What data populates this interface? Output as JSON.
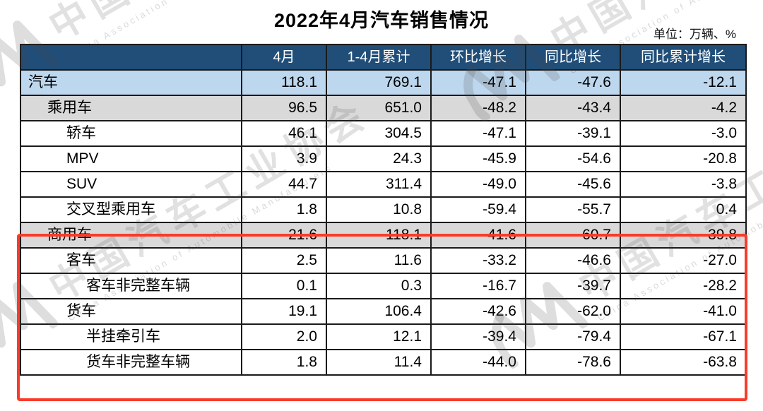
{
  "page": {
    "title": "2022年4月汽车销售情况",
    "unit_note": "单位：万辆、%"
  },
  "chart_data": {
    "type": "table",
    "title": "2022年4月汽车销售情况",
    "unit": "万辆、%",
    "columns": [
      "",
      "4月",
      "1-4月累计",
      "环比增长",
      "同比增长",
      "同比累计增长"
    ],
    "rows": [
      {
        "label": "汽车",
        "indent": 0,
        "row_style": "blue",
        "values": [
          "118.1",
          "769.1",
          "-47.1",
          "-47.6",
          "-12.1"
        ]
      },
      {
        "label": "乘用车",
        "indent": 1,
        "row_style": "gray",
        "values": [
          "96.5",
          "651.0",
          "-48.2",
          "-43.4",
          "-4.2"
        ]
      },
      {
        "label": "轿车",
        "indent": 2,
        "row_style": "white",
        "values": [
          "46.1",
          "304.5",
          "-47.1",
          "-39.1",
          "-3.0"
        ]
      },
      {
        "label": "MPV",
        "indent": 2,
        "row_style": "white",
        "values": [
          "3.9",
          "24.3",
          "-45.9",
          "-54.6",
          "-20.8"
        ]
      },
      {
        "label": "SUV",
        "indent": 2,
        "row_style": "white",
        "values": [
          "44.7",
          "311.4",
          "-49.0",
          "-45.6",
          "-3.8"
        ]
      },
      {
        "label": "交叉型乘用车",
        "indent": 2,
        "row_style": "white",
        "values": [
          "1.8",
          "10.8",
          "-59.4",
          "-55.7",
          "0.4"
        ]
      },
      {
        "label": "商用车",
        "indent": 1,
        "row_style": "gray",
        "values": [
          "21.6",
          "118.1",
          "-41.6",
          "-60.7",
          "-39.8"
        ]
      },
      {
        "label": "客车",
        "indent": 2,
        "row_style": "white",
        "values": [
          "2.5",
          "11.6",
          "-33.2",
          "-46.6",
          "-27.0"
        ]
      },
      {
        "label": "客车非完整车辆",
        "indent": 3,
        "row_style": "white",
        "values": [
          "0.1",
          "0.3",
          "-16.7",
          "-39.7",
          "-28.2"
        ]
      },
      {
        "label": "货车",
        "indent": 2,
        "row_style": "white",
        "values": [
          "19.1",
          "106.4",
          "-42.6",
          "-62.0",
          "-41.0"
        ]
      },
      {
        "label": "半挂牵引车",
        "indent": 3,
        "row_style": "white",
        "values": [
          "2.0",
          "12.1",
          "-39.4",
          "-79.4",
          "-67.1"
        ]
      },
      {
        "label": "货车非完整车辆",
        "indent": 3,
        "row_style": "white",
        "values": [
          "1.8",
          "11.4",
          "-44.0",
          "-78.6",
          "-63.8"
        ]
      }
    ],
    "highlight": {
      "description": "red box drawn around commercial-vehicle rows",
      "row_range": [
        "商用车",
        "货车非完整车辆"
      ]
    },
    "legend_position": "none",
    "grid": true
  },
  "watermark": {
    "logo": "caam-logo",
    "text": "中国汽车工业协会",
    "subtext": "China Association of Automobile Manufacturers"
  },
  "colors": {
    "header_bg": "#204E78",
    "header_text": "#FFFFFF",
    "row_blue": "#BDD7EE",
    "row_gray": "#D9D9D9",
    "grid_border": "#1A1A1A",
    "highlight_box": "#F93B2B"
  }
}
